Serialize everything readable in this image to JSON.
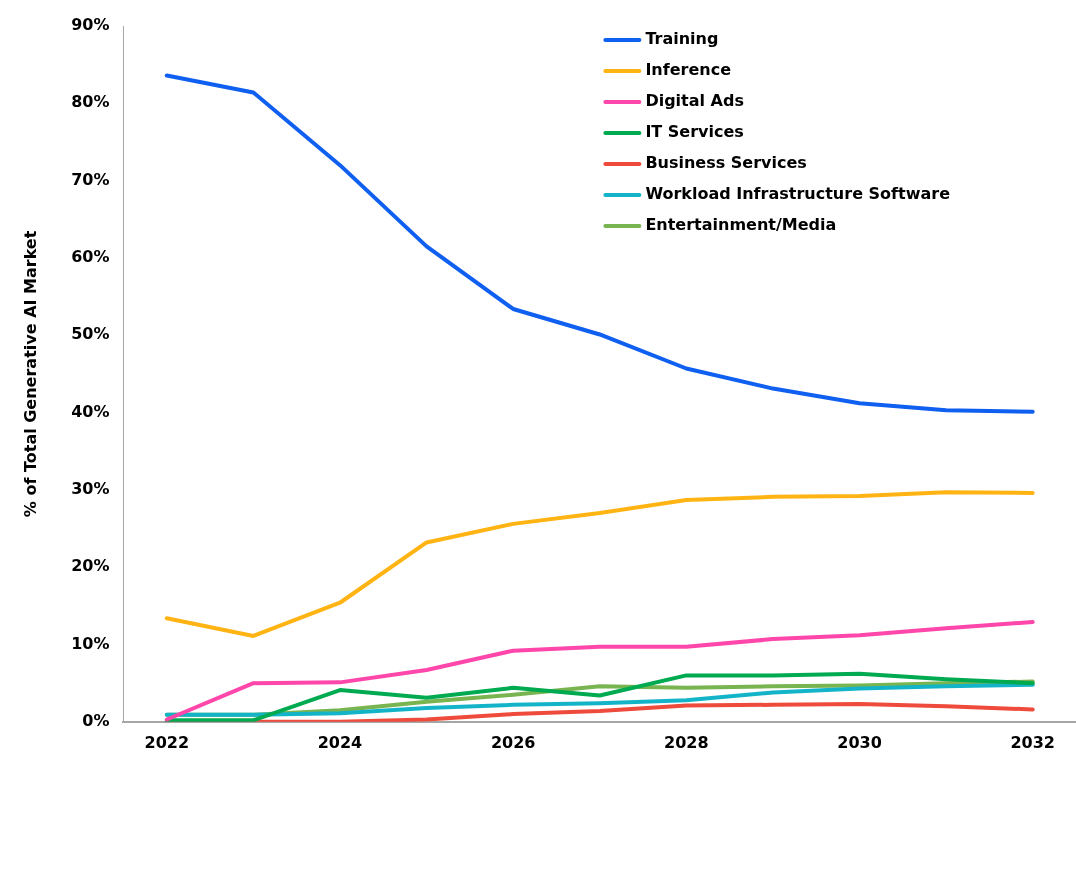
{
  "chart_data": {
    "type": "line",
    "ylabel": "% of Total Generative AI Market",
    "categories": [
      "2022",
      null,
      "2024",
      null,
      "2026",
      null,
      "2028",
      null,
      "2030",
      null,
      "2032"
    ],
    "ylim": [
      0,
      90
    ],
    "yticks": [
      {
        "value": 0,
        "label": "0%"
      },
      {
        "value": 10,
        "label": "10%"
      },
      {
        "value": 20,
        "label": "20%"
      },
      {
        "value": 30,
        "label": "30%"
      },
      {
        "value": 40,
        "label": "40%"
      },
      {
        "value": 50,
        "label": "50%"
      },
      {
        "value": 60,
        "label": "60%"
      },
      {
        "value": 70,
        "label": "70%"
      },
      {
        "value": 80,
        "label": "80%"
      },
      {
        "value": 90,
        "label": "90%"
      }
    ],
    "grid": false,
    "legend": "top right",
    "marker": "none",
    "line_style": "solid",
    "series": [
      {
        "name": "Training",
        "color": "#0f5ff0",
        "values": [
          83.6,
          81.4,
          72.0,
          61.5,
          53.4,
          50.1,
          45.7,
          43.1,
          41.2,
          40.3,
          40.1
        ]
      },
      {
        "name": "Inference",
        "color": "#ffb414",
        "values": [
          13.4,
          11.1,
          15.4,
          23.2,
          25.6,
          27.0,
          28.7,
          29.1,
          29.2,
          29.7,
          29.6
        ]
      },
      {
        "name": "Digital Ads",
        "color": "#ff46aa",
        "values": [
          0.3,
          5.0,
          5.1,
          6.7,
          9.2,
          9.7,
          9.7,
          10.7,
          11.2,
          12.1,
          12.9
        ]
      },
      {
        "name": "IT Services",
        "color": "#00aa50",
        "values": [
          0.2,
          0.2,
          4.1,
          3.1,
          4.4,
          3.4,
          6.0,
          6.0,
          6.2,
          5.5,
          5.0
        ]
      },
      {
        "name": "Business Services",
        "color": "#ee4b3c",
        "values": [
          0.0,
          0.0,
          0.0,
          0.3,
          1.0,
          1.4,
          2.1,
          2.2,
          2.3,
          2.0,
          1.6
        ]
      },
      {
        "name": "Workload Infrastructure Software",
        "color": "#14b4c8",
        "values": [
          0.9,
          0.9,
          1.1,
          1.8,
          2.2,
          2.4,
          2.8,
          3.8,
          4.3,
          4.6,
          4.8
        ]
      },
      {
        "name": "Entertainment/Media",
        "color": "#78b450",
        "values": [
          0.9,
          0.9,
          1.5,
          2.6,
          3.5,
          4.6,
          4.4,
          4.6,
          4.7,
          5.0,
          5.2
        ]
      }
    ]
  }
}
